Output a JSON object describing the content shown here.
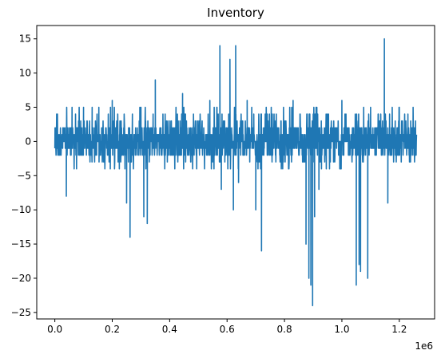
{
  "chart_data": {
    "type": "line",
    "title": "Inventory",
    "xlabel": "",
    "ylabel": "",
    "x_offset_label": "1e6",
    "xlim": [
      -0.063,
      1.323
    ],
    "ylim": [
      -25.95,
      16.95
    ],
    "xticks": [
      0.0,
      0.2,
      0.4,
      0.6,
      0.8,
      1.0,
      1.2
    ],
    "xtick_labels": [
      "0.0",
      "0.2",
      "0.4",
      "0.6",
      "0.8",
      "1.0",
      "1.2"
    ],
    "yticks": [
      15,
      10,
      5,
      0,
      -5,
      -10,
      -15,
      -20,
      -25
    ],
    "ytick_labels": [
      "15",
      "10",
      "5",
      "0",
      "−5",
      "−10",
      "−15",
      "−20",
      "−25"
    ],
    "grid": false,
    "legend": "none",
    "series": [
      {
        "color": "#1f77b4",
        "x_range": [
          0.0,
          1.26
        ],
        "baseline_band": [
          -2,
          2
        ],
        "frequent_band": [
          -4,
          5
        ],
        "spikes": [
          {
            "x": 0.04,
            "y": -8
          },
          {
            "x": 0.06,
            "y": 5
          },
          {
            "x": 0.1,
            "y": 5
          },
          {
            "x": 0.13,
            "y": 5
          },
          {
            "x": 0.2,
            "y": 6
          },
          {
            "x": 0.25,
            "y": -9
          },
          {
            "x": 0.262,
            "y": -14
          },
          {
            "x": 0.3,
            "y": 5
          },
          {
            "x": 0.31,
            "y": -11
          },
          {
            "x": 0.322,
            "y": -12
          },
          {
            "x": 0.35,
            "y": 9
          },
          {
            "x": 0.445,
            "y": 7
          },
          {
            "x": 0.54,
            "y": 6
          },
          {
            "x": 0.575,
            "y": 14
          },
          {
            "x": 0.58,
            "y": -7
          },
          {
            "x": 0.61,
            "y": 12
          },
          {
            "x": 0.622,
            "y": -10
          },
          {
            "x": 0.63,
            "y": 14
          },
          {
            "x": 0.64,
            "y": -6
          },
          {
            "x": 0.67,
            "y": 6
          },
          {
            "x": 0.7,
            "y": -10
          },
          {
            "x": 0.72,
            "y": -16
          },
          {
            "x": 0.74,
            "y": 4
          },
          {
            "x": 0.83,
            "y": 6
          },
          {
            "x": 0.875,
            "y": -15
          },
          {
            "x": 0.885,
            "y": -20
          },
          {
            "x": 0.892,
            "y": -21
          },
          {
            "x": 0.898,
            "y": -24
          },
          {
            "x": 0.905,
            "y": -11
          },
          {
            "x": 0.91,
            "y": 5
          },
          {
            "x": 0.92,
            "y": -7
          },
          {
            "x": 1.0,
            "y": 6
          },
          {
            "x": 1.05,
            "y": -21
          },
          {
            "x": 1.06,
            "y": -18
          },
          {
            "x": 1.065,
            "y": -19
          },
          {
            "x": 1.09,
            "y": -20
          },
          {
            "x": 1.1,
            "y": 5
          },
          {
            "x": 1.148,
            "y": 15
          },
          {
            "x": 1.16,
            "y": -9
          },
          {
            "x": 1.2,
            "y": 5
          },
          {
            "x": 1.23,
            "y": 4
          }
        ]
      }
    ]
  }
}
